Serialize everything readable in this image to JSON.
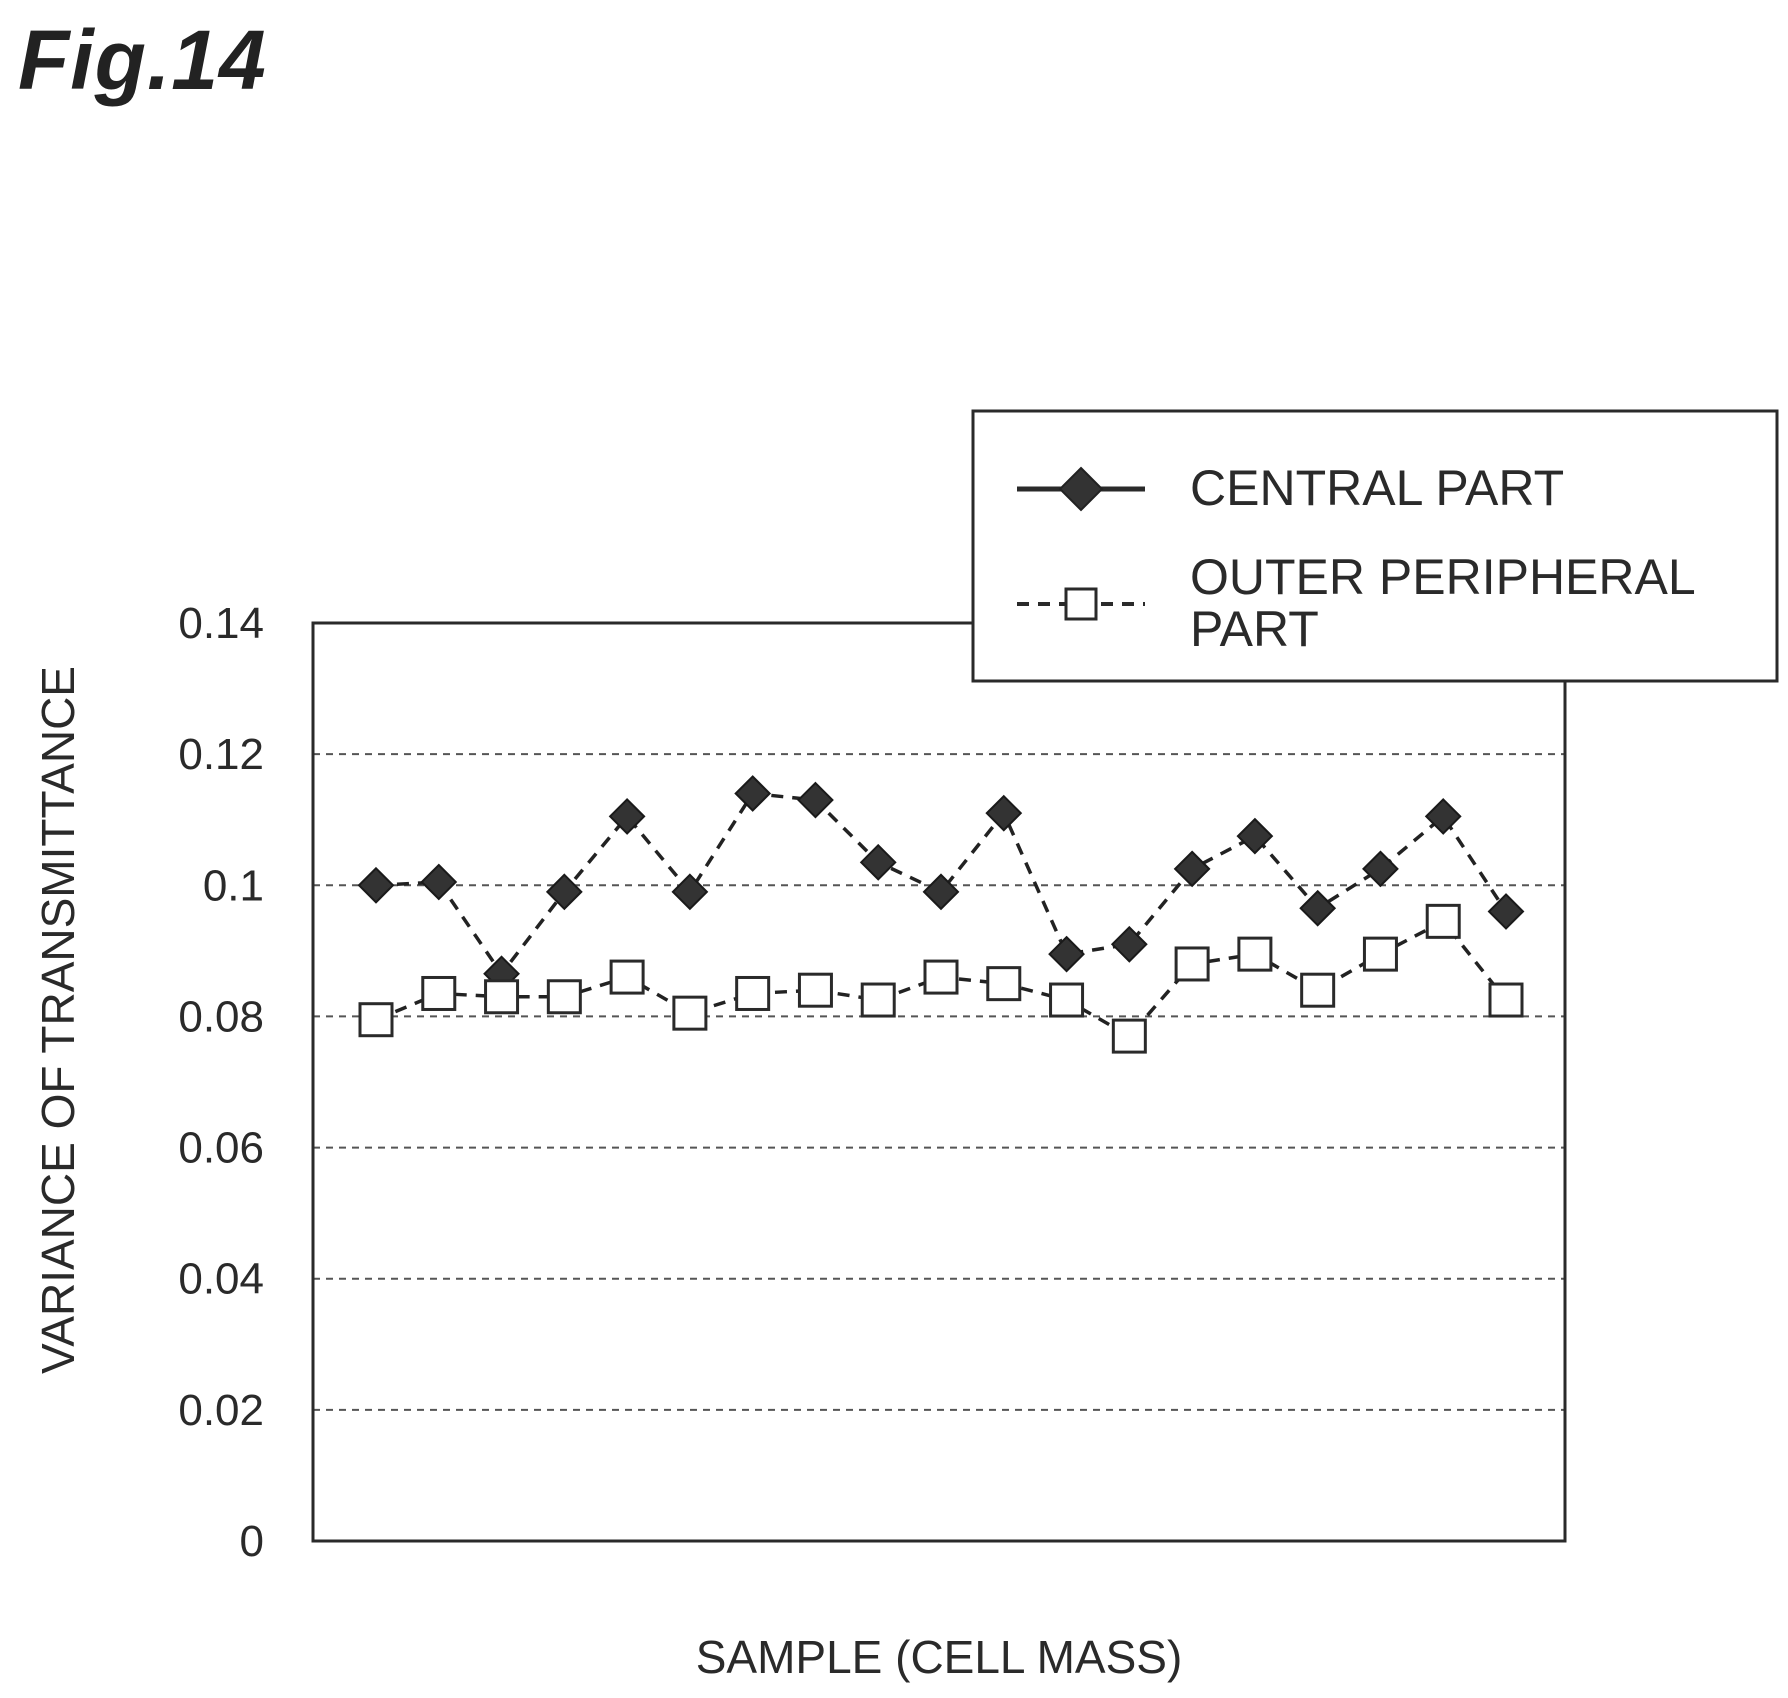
{
  "figure_label": "Fig.14",
  "chart_data": {
    "type": "line",
    "title": "",
    "xlabel": "SAMPLE (CELL MASS)",
    "ylabel": "VARIANCE OF TRANSMITTANCE",
    "ylim": [
      0,
      0.14
    ],
    "yticks": [
      "0",
      "0.02",
      "0.04",
      "0.06",
      "0.08",
      "0.1",
      "0.12",
      "0.14"
    ],
    "grid": "horizontal-dashed",
    "legend_position": "top-right",
    "x": [
      1,
      2,
      3,
      4,
      5,
      6,
      7,
      8,
      9,
      10,
      11,
      12,
      13,
      14,
      15,
      16,
      17,
      18,
      19
    ],
    "series": [
      {
        "name": "CENTRAL PART",
        "marker": "filled-diamond",
        "line": "dashed",
        "color": "#222222",
        "values": [
          0.1,
          0.1005,
          0.0865,
          0.099,
          0.1105,
          0.099,
          0.114,
          0.113,
          0.1035,
          0.099,
          0.111,
          0.0895,
          0.091,
          0.1025,
          0.1075,
          0.0965,
          0.1025,
          0.1105,
          0.096
        ]
      },
      {
        "name_lines": [
          "OUTER PERIPHERAL",
          "PART"
        ],
        "marker": "open-square",
        "line": "dashed",
        "color": "#222222",
        "values": [
          0.0795,
          0.0835,
          0.083,
          0.083,
          0.086,
          0.0805,
          0.0835,
          0.084,
          0.0825,
          0.086,
          0.085,
          0.0825,
          0.077,
          0.088,
          0.0895,
          0.084,
          0.0895,
          0.0945,
          0.0825
        ]
      }
    ]
  }
}
